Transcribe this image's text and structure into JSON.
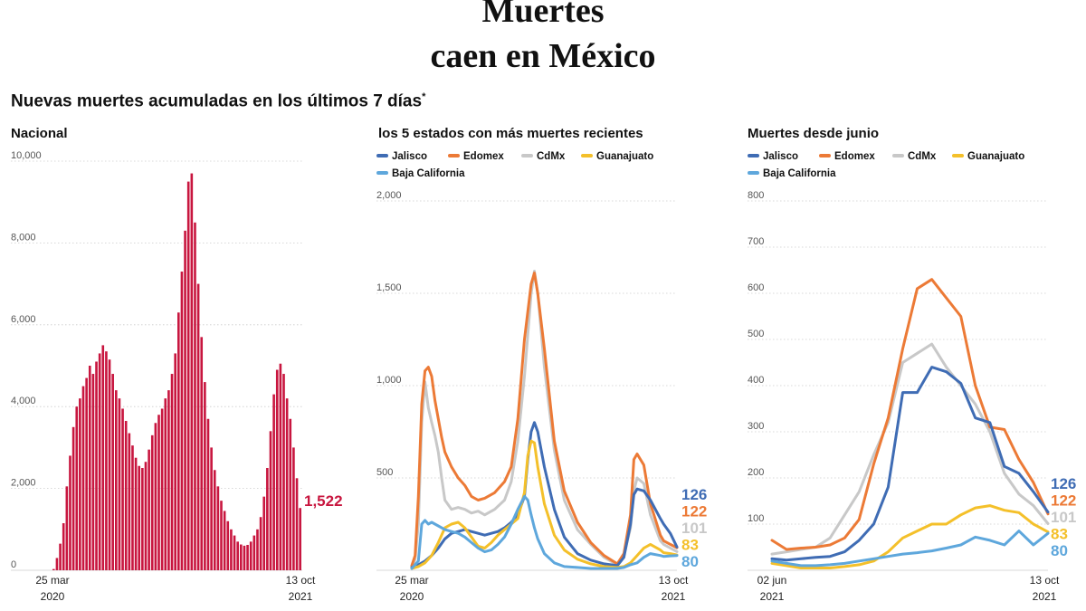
{
  "title_line1": "Muertes",
  "title_line2": "caen en México",
  "subtitle": "Nuevas muertes acumuladas en los últimos 7 días",
  "subtitle_mark": "*",
  "colors": {
    "bar": "#c8163f",
    "Jalisco": "#3f6cb4",
    "Edomex": "#ec7a36",
    "CdMx": "#c8c8c8",
    "Guanajuato": "#f4c02a",
    "Baja California": "#5ea7dc",
    "grid": "#cccccc"
  },
  "chart_data": [
    {
      "type": "bar",
      "title": "Nacional",
      "ylim": [
        0,
        10000
      ],
      "yticks": [
        0,
        2000,
        4000,
        6000,
        8000,
        10000
      ],
      "ytick_labels": [
        "0",
        "2,000",
        "4,000",
        "6,000",
        "8,000",
        "10,000"
      ],
      "x_start_label": [
        "25 mar",
        "2020"
      ],
      "x_end_label": [
        "13 oct",
        "2021"
      ],
      "last_value_label": "1,522",
      "values": [
        30,
        300,
        650,
        1150,
        2050,
        2800,
        3500,
        4000,
        4200,
        4500,
        4700,
        5000,
        4800,
        5100,
        5300,
        5500,
        5350,
        5150,
        4800,
        4400,
        4200,
        3950,
        3650,
        3350,
        3050,
        2750,
        2550,
        2500,
        2650,
        2950,
        3300,
        3600,
        3800,
        3950,
        4200,
        4400,
        4800,
        5300,
        6300,
        7300,
        8300,
        9500,
        9700,
        8500,
        7000,
        5700,
        4600,
        3700,
        3000,
        2450,
        2050,
        1700,
        1450,
        1200,
        1000,
        850,
        700,
        630,
        600,
        620,
        700,
        850,
        1000,
        1300,
        1800,
        2500,
        3400,
        4300,
        4900,
        5050,
        4800,
        4200,
        3700,
        3000,
        2250,
        1522
      ]
    },
    {
      "type": "line",
      "title": "los 5 estados con más muertes recientes",
      "ylim": [
        0,
        2000
      ],
      "yticks": [
        0,
        500,
        1000,
        1500,
        2000
      ],
      "ytick_labels": [
        "",
        "500",
        "1,000",
        "1,500",
        "2,000"
      ],
      "x_start_label": [
        "25 mar",
        "2020"
      ],
      "x_end_label": [
        "13 oct",
        "2021"
      ],
      "x_range": [
        0,
        80
      ],
      "series": [
        {
          "name": "CdMx",
          "end_label": "101",
          "x": [
            0,
            1,
            2,
            3,
            4,
            5,
            6,
            7,
            8,
            9,
            10,
            12,
            14,
            16,
            18,
            20,
            22,
            25,
            28,
            30,
            32,
            34,
            36,
            37,
            38,
            40,
            43,
            46,
            50,
            54,
            58,
            62,
            64,
            66,
            67,
            68,
            70,
            72,
            75,
            76,
            78,
            80
          ],
          "values": [
            20,
            60,
            250,
            800,
            1020,
            880,
            800,
            730,
            640,
            500,
            380,
            330,
            340,
            330,
            310,
            320,
            300,
            330,
            380,
            480,
            700,
            1050,
            1500,
            1620,
            1500,
            1100,
            650,
            380,
            220,
            140,
            70,
            30,
            80,
            230,
            430,
            500,
            470,
            300,
            160,
            140,
            120,
            101
          ]
        },
        {
          "name": "Edomex",
          "end_label": "122",
          "x": [
            0,
            1,
            2,
            3,
            4,
            5,
            6,
            7,
            8,
            9,
            10,
            12,
            14,
            16,
            18,
            20,
            22,
            25,
            28,
            30,
            32,
            34,
            36,
            37,
            38,
            40,
            43,
            46,
            50,
            54,
            58,
            62,
            64,
            66,
            67,
            68,
            70,
            72,
            75,
            76,
            78,
            80
          ],
          "values": [
            25,
            80,
            400,
            900,
            1080,
            1100,
            1050,
            920,
            820,
            720,
            640,
            560,
            500,
            460,
            400,
            380,
            390,
            420,
            480,
            560,
            820,
            1250,
            1550,
            1610,
            1500,
            1200,
            700,
            430,
            260,
            150,
            80,
            35,
            90,
            300,
            600,
            630,
            570,
            360,
            190,
            160,
            140,
            122
          ]
        },
        {
          "name": "Jalisco",
          "end_label": "126",
          "x": [
            0,
            2,
            4,
            6,
            8,
            10,
            12,
            14,
            16,
            18,
            20,
            22,
            24,
            26,
            28,
            30,
            32,
            34,
            35,
            36,
            37,
            38,
            40,
            43,
            46,
            50,
            54,
            58,
            62,
            64,
            66,
            67,
            68,
            70,
            72,
            75,
            76,
            78,
            80
          ],
          "values": [
            15,
            30,
            50,
            80,
            120,
            170,
            200,
            210,
            220,
            210,
            200,
            190,
            200,
            210,
            230,
            260,
            300,
            400,
            600,
            750,
            800,
            750,
            560,
            330,
            180,
            90,
            55,
            35,
            25,
            70,
            250,
            410,
            440,
            430,
            380,
            280,
            250,
            200,
            126
          ]
        },
        {
          "name": "Guanajuato",
          "end_label": "83",
          "x": [
            0,
            2,
            4,
            6,
            8,
            10,
            12,
            14,
            16,
            18,
            20,
            22,
            24,
            26,
            28,
            30,
            32,
            34,
            35,
            36,
            37,
            38,
            40,
            43,
            46,
            50,
            54,
            58,
            62,
            64,
            66,
            68,
            70,
            72,
            75,
            76,
            78,
            80
          ],
          "values": [
            10,
            20,
            40,
            80,
            150,
            230,
            250,
            260,
            230,
            180,
            130,
            120,
            150,
            190,
            220,
            250,
            280,
            420,
            620,
            700,
            690,
            560,
            360,
            190,
            110,
            60,
            35,
            20,
            15,
            20,
            40,
            80,
            120,
            140,
            110,
            95,
            90,
            83
          ]
        },
        {
          "name": "Baja California",
          "end_label": "80",
          "x": [
            0,
            2,
            3,
            4,
            5,
            6,
            8,
            10,
            12,
            14,
            16,
            18,
            20,
            22,
            24,
            26,
            28,
            30,
            32,
            34,
            35,
            36,
            37,
            38,
            40,
            43,
            46,
            50,
            54,
            58,
            62,
            64,
            66,
            68,
            70,
            72,
            75,
            76,
            78,
            80
          ],
          "values": [
            10,
            50,
            250,
            270,
            250,
            260,
            240,
            220,
            210,
            200,
            180,
            150,
            120,
            100,
            110,
            140,
            180,
            250,
            330,
            400,
            380,
            300,
            230,
            170,
            90,
            40,
            20,
            15,
            10,
            10,
            10,
            15,
            30,
            40,
            70,
            90,
            80,
            75,
            78,
            80
          ]
        }
      ]
    },
    {
      "type": "line",
      "title": "Muertes desde junio",
      "ylim": [
        0,
        800
      ],
      "yticks": [
        0,
        100,
        200,
        300,
        400,
        500,
        600,
        700,
        800
      ],
      "ytick_labels": [
        "",
        "100",
        "200",
        "300",
        "400",
        "500",
        "600",
        "700",
        "800"
      ],
      "x_start_label": [
        "02 jun",
        "2021"
      ],
      "x_end_label": [
        "13 oct",
        "2021"
      ],
      "x_range": [
        0,
        19
      ],
      "x": [
        0,
        1,
        2,
        3,
        4,
        5,
        6,
        7,
        8,
        9,
        10,
        11,
        12,
        13,
        14,
        15,
        16,
        17,
        18,
        19
      ],
      "series": [
        {
          "name": "Jalisco",
          "end_label": "126",
          "values": [
            25,
            22,
            25,
            28,
            30,
            40,
            65,
            100,
            180,
            385,
            385,
            440,
            430,
            405,
            330,
            320,
            225,
            210,
            170,
            126
          ]
        },
        {
          "name": "Edomex",
          "end_label": "122",
          "values": [
            65,
            45,
            48,
            50,
            55,
            70,
            110,
            230,
            330,
            480,
            610,
            630,
            590,
            550,
            400,
            310,
            305,
            240,
            190,
            122
          ]
        },
        {
          "name": "CdMx",
          "end_label": "101",
          "values": [
            35,
            40,
            45,
            50,
            70,
            120,
            170,
            250,
            320,
            450,
            470,
            490,
            440,
            400,
            360,
            300,
            210,
            165,
            140,
            101
          ]
        },
        {
          "name": "Guanajuato",
          "end_label": "83",
          "values": [
            15,
            10,
            5,
            5,
            5,
            8,
            12,
            20,
            40,
            70,
            85,
            100,
            100,
            120,
            135,
            140,
            130,
            125,
            100,
            83
          ]
        },
        {
          "name": "Baja California",
          "end_label": "80",
          "values": [
            20,
            15,
            10,
            10,
            12,
            15,
            20,
            25,
            30,
            35,
            38,
            42,
            48,
            55,
            72,
            65,
            55,
            85,
            55,
            80
          ]
        }
      ]
    }
  ]
}
